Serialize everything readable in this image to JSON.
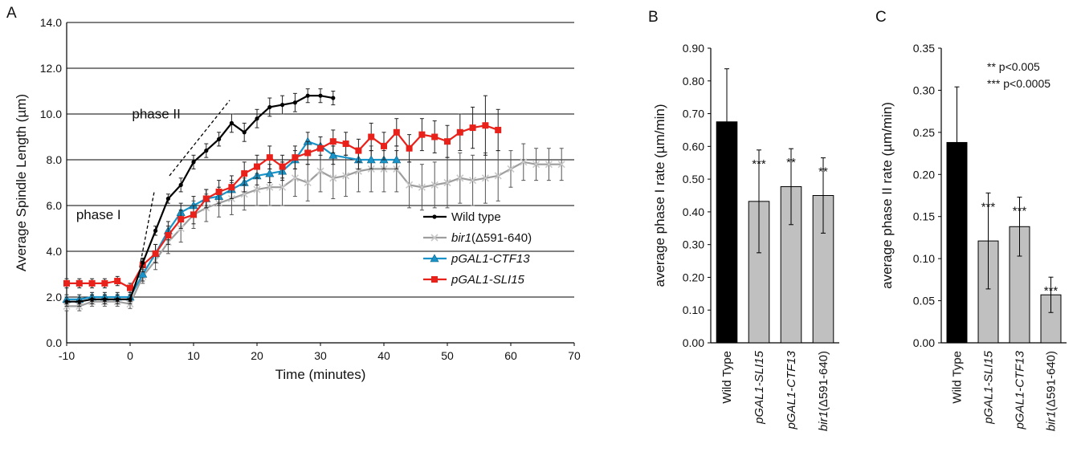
{
  "chart_data": [
    {
      "panel_label": "A",
      "type": "line",
      "xlabel": "Time (minutes)",
      "ylabel": "Average Spindle Length (µm)",
      "xlim": [
        -10,
        70
      ],
      "ylim": [
        0,
        14
      ],
      "xticks": [
        -10,
        0,
        10,
        20,
        30,
        40,
        50,
        60,
        70
      ],
      "yticks": [
        0,
        2,
        4,
        6,
        8,
        10,
        12,
        14
      ],
      "xtick_labels": [
        "-10",
        "0",
        "10",
        "20",
        "30",
        "40",
        "50",
        "60",
        "70"
      ],
      "ytick_labels": [
        "0.0",
        "2.0",
        "4.0",
        "6.0",
        "8.0",
        "10.0",
        "12.0",
        "14.0"
      ],
      "grid": "horizontal",
      "legend_position": "center-right",
      "annotations": [
        {
          "text": "phase I",
          "x": -8.5,
          "y": 5.4,
          "line": [
            [
              1.5,
              3.3
            ],
            [
              3.8,
              6.6
            ]
          ]
        },
        {
          "text": "phase II",
          "x": 0.3,
          "y": 9.8,
          "line": [
            [
              6.2,
              7.3
            ],
            [
              15.7,
              10.6
            ]
          ]
        }
      ],
      "series": [
        {
          "name": "bir1",
          "name_suffix": "(Δ591-640)",
          "color": "#9e9e9e",
          "marker": "x",
          "x": [
            -10,
            -8,
            -6,
            -4,
            -2,
            0,
            2,
            4,
            6,
            8,
            10,
            12,
            14,
            16,
            18,
            20,
            22,
            24,
            26,
            28,
            30,
            32,
            34,
            36,
            38,
            40,
            42,
            44,
            46,
            48,
            50,
            52,
            54,
            56,
            58,
            60,
            62,
            64,
            66,
            68
          ],
          "y": [
            1.6,
            1.6,
            1.8,
            1.8,
            1.8,
            1.7,
            2.9,
            3.6,
            4.4,
            5.0,
            5.6,
            5.9,
            6.1,
            6.3,
            6.5,
            6.7,
            6.8,
            6.8,
            7.2,
            7.0,
            7.5,
            7.2,
            7.3,
            7.5,
            7.6,
            7.6,
            7.6,
            6.9,
            6.8,
            6.9,
            7.0,
            7.2,
            7.1,
            7.2,
            7.3,
            7.6,
            7.9,
            7.8,
            7.8,
            7.8
          ],
          "err": [
            0.2,
            0.2,
            0.2,
            0.2,
            0.2,
            0.2,
            0.3,
            0.4,
            0.5,
            0.6,
            0.6,
            0.6,
            0.6,
            0.7,
            0.7,
            0.7,
            0.8,
            0.8,
            0.8,
            0.8,
            0.9,
            0.9,
            0.9,
            0.9,
            1.0,
            1.0,
            1.0,
            1.0,
            1.0,
            1.0,
            1.1,
            1.1,
            1.1,
            1.1,
            1.1,
            0.8,
            0.8,
            0.7,
            0.7,
            0.7
          ]
        },
        {
          "name": "pGAL1-CTF13",
          "color": "#1a94c8",
          "marker": "triangle",
          "x": [
            -10,
            -8,
            -6,
            -4,
            -2,
            0,
            2,
            4,
            6,
            8,
            10,
            12,
            14,
            16,
            18,
            20,
            22,
            24,
            26,
            28,
            30,
            32,
            36,
            38,
            40,
            42
          ],
          "y": [
            1.9,
            1.9,
            2.0,
            2.0,
            2.0,
            2.0,
            3.0,
            3.9,
            4.9,
            5.7,
            6.0,
            6.3,
            6.4,
            6.7,
            7.0,
            7.3,
            7.4,
            7.5,
            8.0,
            8.8,
            8.6,
            8.2,
            8.0,
            8.0,
            8.0,
            8.0
          ],
          "err": [
            0.2,
            0.2,
            0.2,
            0.2,
            0.2,
            0.2,
            0.3,
            0.4,
            0.4,
            0.4,
            0.4,
            0.4,
            0.4,
            0.4,
            0.4,
            0.4,
            0.4,
            0.4,
            0.4,
            0.4,
            0.4,
            0.4,
            0.4,
            0.4,
            0.4,
            0.4
          ]
        },
        {
          "name": "pGAL1-SLI15",
          "color": "#e8211b",
          "marker": "square",
          "x": [
            -10,
            -8,
            -6,
            -4,
            -2,
            0,
            2,
            4,
            6,
            8,
            10,
            12,
            14,
            16,
            18,
            20,
            22,
            24,
            26,
            28,
            30,
            32,
            34,
            36,
            38,
            40,
            42,
            44,
            46,
            48,
            50,
            52,
            54,
            56,
            58
          ],
          "y": [
            2.6,
            2.6,
            2.6,
            2.6,
            2.7,
            2.4,
            3.4,
            3.9,
            4.7,
            5.4,
            5.6,
            6.3,
            6.6,
            6.8,
            7.4,
            7.7,
            8.1,
            7.7,
            8.1,
            8.3,
            8.5,
            8.8,
            8.7,
            8.4,
            9.0,
            8.6,
            9.2,
            8.5,
            9.1,
            9.0,
            8.8,
            9.2,
            9.4,
            9.5,
            9.3
          ],
          "err": [
            0.2,
            0.2,
            0.2,
            0.2,
            0.2,
            0.2,
            0.3,
            0.4,
            0.4,
            0.4,
            0.4,
            0.4,
            0.5,
            0.5,
            0.5,
            0.5,
            0.5,
            0.5,
            0.5,
            0.5,
            0.5,
            0.5,
            0.5,
            0.5,
            0.6,
            0.6,
            0.6,
            0.6,
            0.7,
            0.7,
            0.7,
            0.8,
            0.9,
            1.3,
            0.9
          ]
        },
        {
          "name": "Wild type",
          "color": "#000000",
          "marker": "diamond",
          "x": [
            -10,
            -8,
            -6,
            -4,
            -2,
            0,
            2,
            4,
            6,
            8,
            10,
            12,
            14,
            16,
            18,
            20,
            22,
            24,
            26,
            28,
            30,
            32
          ],
          "y": [
            1.8,
            1.8,
            1.9,
            1.9,
            1.9,
            1.9,
            3.5,
            4.9,
            6.3,
            6.9,
            7.9,
            8.4,
            8.9,
            9.6,
            9.2,
            9.8,
            10.3,
            10.4,
            10.5,
            10.8,
            10.8,
            10.7
          ],
          "err": [
            0.2,
            0.2,
            0.2,
            0.2,
            0.2,
            0.2,
            0.2,
            0.2,
            0.2,
            0.3,
            0.3,
            0.3,
            0.3,
            0.4,
            0.4,
            0.4,
            0.4,
            0.4,
            0.4,
            0.3,
            0.3,
            0.3
          ]
        }
      ]
    },
    {
      "panel_label": "B",
      "type": "bar",
      "ylabel": "average phase I rate (µm/min)",
      "ylim": [
        0,
        0.9
      ],
      "yticks": [
        0,
        0.1,
        0.2,
        0.3,
        0.4,
        0.5,
        0.6,
        0.7,
        0.8,
        0.9
      ],
      "ytick_labels": [
        "0.00",
        "0.10",
        "0.20",
        "0.30",
        "0.40",
        "0.50",
        "0.60",
        "0.70",
        "0.80",
        "0.90"
      ],
      "categories": [
        {
          "name": "Wild Type",
          "italic": false,
          "suffix": ""
        },
        {
          "name": "pGAL1-SLI15",
          "italic": true,
          "suffix": ""
        },
        {
          "name": "pGAL1-CTF13",
          "italic": true,
          "suffix": ""
        },
        {
          "name": "bir1",
          "italic": true,
          "suffix": "(Δ591-640)"
        }
      ],
      "values": [
        0.675,
        0.432,
        0.477,
        0.45
      ],
      "err": [
        0.162,
        0.157,
        0.116,
        0.115
      ],
      "colors": [
        "#000000",
        "#c0c0c0",
        "#c0c0c0",
        "#c0c0c0"
      ],
      "significance": [
        "",
        "***",
        "**",
        "**"
      ]
    },
    {
      "panel_label": "C",
      "type": "bar",
      "ylabel": "average phase II rate (µm/min)",
      "ylim": [
        0,
        0.35
      ],
      "yticks": [
        0,
        0.05,
        0.1,
        0.15,
        0.2,
        0.25,
        0.3,
        0.35
      ],
      "ytick_labels": [
        "0.00",
        "0.05",
        "0.10",
        "0.15",
        "0.20",
        "0.25",
        "0.30",
        "0.35"
      ],
      "categories": [
        {
          "name": "Wild Type",
          "italic": false,
          "suffix": ""
        },
        {
          "name": "pGAL1-SLI15",
          "italic": true,
          "suffix": ""
        },
        {
          "name": "pGAL1-CTF13",
          "italic": true,
          "suffix": ""
        },
        {
          "name": "bir1",
          "italic": true,
          "suffix": "(Δ591-640)"
        }
      ],
      "values": [
        0.238,
        0.121,
        0.138,
        0.057
      ],
      "err": [
        0.066,
        0.057,
        0.035,
        0.021
      ],
      "colors": [
        "#000000",
        "#c0c0c0",
        "#c0c0c0",
        "#c0c0c0"
      ],
      "significance": [
        "",
        "***",
        "***",
        "***"
      ],
      "notes": [
        "** p<0.005",
        "*** p<0.0005"
      ]
    }
  ]
}
